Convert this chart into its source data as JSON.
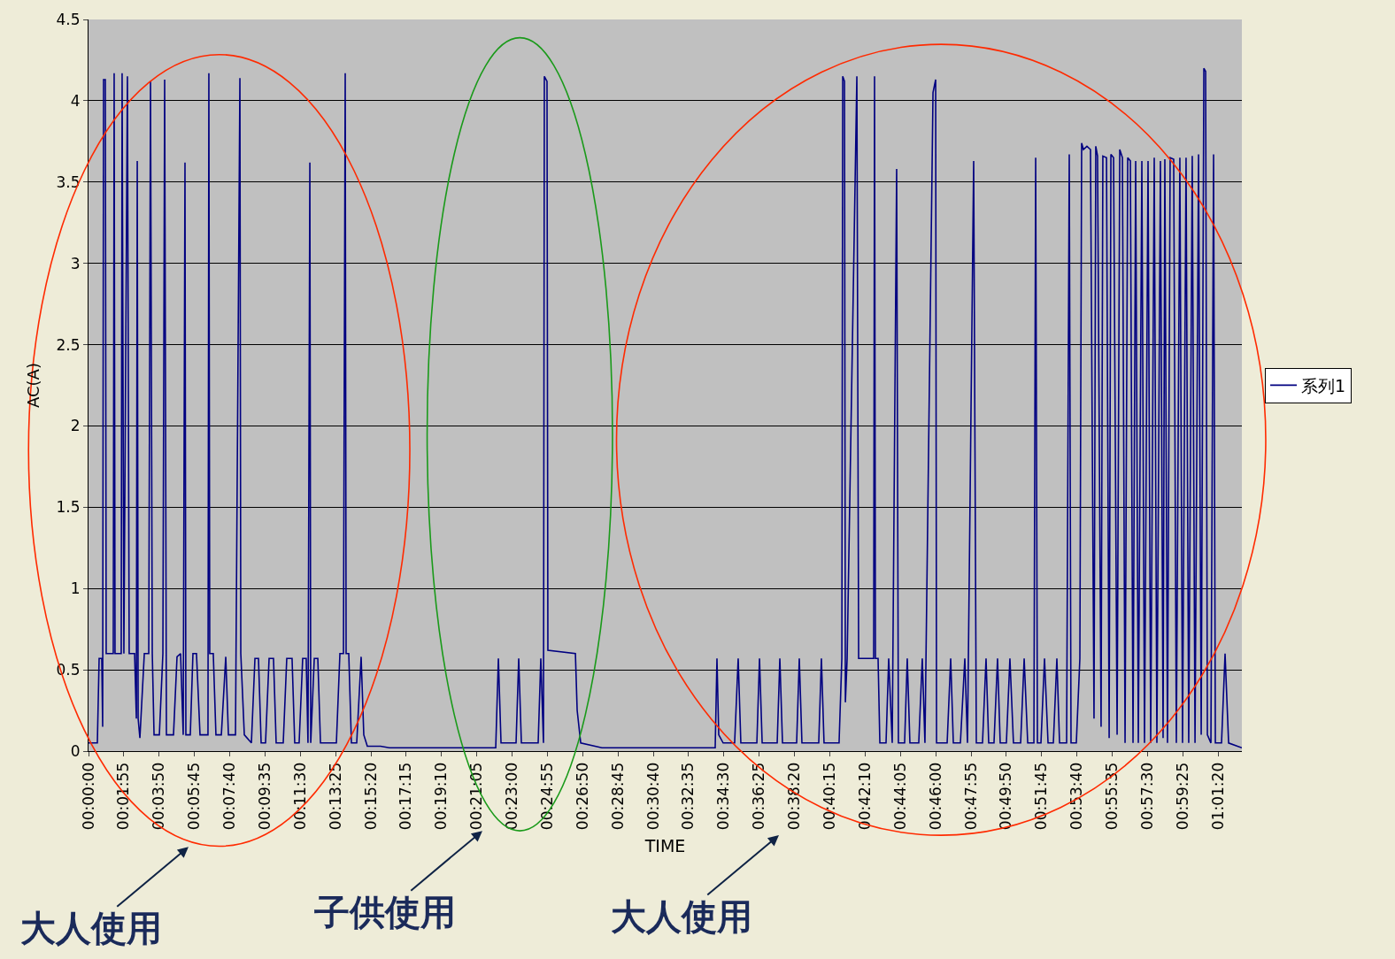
{
  "chart_data": {
    "type": "line",
    "xlabel": "TIME",
    "ylabel": "AC(A)",
    "x": [
      0,
      0.008,
      0.0096,
      0.012,
      0.0128,
      0.0136,
      0.0152,
      0.016,
      0.0224,
      0.0232,
      0.024,
      0.0296,
      0.0304,
      0.032,
      0.0352,
      0.0368,
      0.0417,
      0.0433,
      0.0441,
      0.0449,
      0.0465,
      0.0505,
      0.0545,
      0.0561,
      0.0577,
      0.0593,
      0.0641,
      0.0673,
      0.0689,
      0.0705,
      0.0769,
      0.0801,
      0.0833,
      0.0857,
      0.0873,
      0.0881,
      0.0921,
      0.0945,
      0.0977,
      0.1009,
      0.1081,
      0.1089,
      0.1097,
      0.1129,
      0.1153,
      0.1202,
      0.1242,
      0.1266,
      0.133,
      0.137,
      0.1378,
      0.141,
      0.1474,
      0.1506,
      0.1538,
      0.1562,
      0.1602,
      0.1634,
      0.1674,
      0.1698,
      0.1762,
      0.1794,
      0.1842,
      0.1866,
      0.1906,
      0.1938,
      0.197,
      0.1986,
      0.2003,
      0.2011,
      0.2043,
      0.2075,
      0.2099,
      0.2243,
      0.2275,
      0.2307,
      0.2323,
      0.2331,
      0.2355,
      0.2379,
      0.2427,
      0.2467,
      0.2491,
      0.2523,
      0.2643,
      0.2723,
      0.3685,
      0.3709,
      0.3733,
      0.3869,
      0.3893,
      0.3917,
      0.4069,
      0.4093,
      0.4117,
      0.4125,
      0.4149,
      0.4157,
      0.4406,
      0.4422,
      0.4454,
      0.4646,
      0.5671,
      0.5687,
      0.5703,
      0.5743,
      0.5847,
      0.5879,
      0.5903,
      0.6048,
      0.6072,
      0.6096,
      0.6232,
      0.6256,
      0.628,
      0.6408,
      0.6432,
      0.6456,
      0.6608,
      0.6632,
      0.6656,
      0.6792,
      0.6817,
      0.6825,
      0.6841,
      0.6849,
      0.6865,
      0.6953,
      0.6969,
      0.7105,
      0.7113,
      0.7121,
      0.7145,
      0.7161,
      0.7217,
      0.7241,
      0.7273,
      0.7313,
      0.7329,
      0.7385,
      0.7409,
      0.7433,
      0.7513,
      0.7545,
      0.7569,
      0.7642,
      0.7666,
      0.7674,
      0.777,
      0.7802,
      0.7826,
      0.789,
      0.793,
      0.7954,
      0.801,
      0.8034,
      0.809,
      0.8122,
      0.8146,
      0.8194,
      0.8226,
      0.825,
      0.8306,
      0.8338,
      0.837,
      0.8435,
      0.8467,
      0.8499,
      0.8555,
      0.8571,
      0.8587,
      0.8619,
      0.8651,
      0.8683,
      0.8731,
      0.8763,
      0.8787,
      0.8851,
      0.8875,
      0.8891,
      0.8939,
      0.8971,
      0.8987,
      0.9003,
      0.9035,
      0.9067,
      0.9099,
      0.9115,
      0.9131,
      0.9163,
      0.9179,
      0.9212,
      0.9236,
      0.9252,
      0.9276,
      0.9308,
      0.9332,
      0.9356,
      0.938,
      0.9404,
      0.9428,
      0.9452,
      0.9476,
      0.95,
      0.9532,
      0.9556,
      0.9588,
      0.9612,
      0.9644,
      0.9668,
      0.97,
      0.9724,
      0.974,
      0.9764,
      0.9788,
      0.982,
      0.9844,
      0.9876,
      0.99,
      0.9932,
      0.9956,
      0.9988,
      1.0013,
      1.0045,
      1.0069,
      1.0093,
      1.0109,
      1.0125,
      1.0157,
      1.0181,
      1.0197,
      1.0253,
      1.0285,
      1.0317,
      1.0437
    ],
    "series": [
      {
        "name": "系列1",
        "color": "#000080",
        "values": [
          0.05,
          0.05,
          0.57,
          0.57,
          0.15,
          4.13,
          4.13,
          0.6,
          0.6,
          4.17,
          0.6,
          0.6,
          4.17,
          0.6,
          4.15,
          0.6,
          0.6,
          0.2,
          3.63,
          0.2,
          0.08,
          0.6,
          0.6,
          4.12,
          0.6,
          0.1,
          0.1,
          0.6,
          4.13,
          0.1,
          0.1,
          0.58,
          0.6,
          0.1,
          3.62,
          0.1,
          0.1,
          0.6,
          0.6,
          0.1,
          0.1,
          4.17,
          0.6,
          0.6,
          0.1,
          0.1,
          0.58,
          0.1,
          0.1,
          4.14,
          0.6,
          0.1,
          0.05,
          0.57,
          0.57,
          0.05,
          0.05,
          0.57,
          0.57,
          0.05,
          0.05,
          0.57,
          0.57,
          0.05,
          0.05,
          0.57,
          0.57,
          0.05,
          3.62,
          0.05,
          0.57,
          0.57,
          0.05,
          0.05,
          0.6,
          0.6,
          4.17,
          0.6,
          0.6,
          0.05,
          0.05,
          0.58,
          0.1,
          0.03,
          0.03,
          0.02,
          0.02,
          0.57,
          0.05,
          0.05,
          0.57,
          0.05,
          0.05,
          0.57,
          0.05,
          4.15,
          4.12,
          0.62,
          0.6,
          0.25,
          0.05,
          0.02,
          0.02,
          0.57,
          0.1,
          0.05,
          0.05,
          0.57,
          0.05,
          0.05,
          0.57,
          0.05,
          0.05,
          0.57,
          0.05,
          0.05,
          0.57,
          0.05,
          0.05,
          0.57,
          0.05,
          0.05,
          0.57,
          4.15,
          4.12,
          0.3,
          0.57,
          4.15,
          0.57,
          0.57,
          4.15,
          0.57,
          0.57,
          0.05,
          0.05,
          0.57,
          0.05,
          3.58,
          0.05,
          0.05,
          0.57,
          0.05,
          0.05,
          0.57,
          0.05,
          4.05,
          4.13,
          0.05,
          0.05,
          0.57,
          0.05,
          0.05,
          0.57,
          0.05,
          3.63,
          0.05,
          0.05,
          0.57,
          0.05,
          0.05,
          0.57,
          0.05,
          0.05,
          0.57,
          0.05,
          0.05,
          0.57,
          0.05,
          0.05,
          3.65,
          0.05,
          0.05,
          0.57,
          0.05,
          0.05,
          0.57,
          0.05,
          0.05,
          3.67,
          0.05,
          0.05,
          0.57,
          3.74,
          3.7,
          3.72,
          3.7,
          0.2,
          3.72,
          3.66,
          0.15,
          3.66,
          3.65,
          0.08,
          3.67,
          3.65,
          0.1,
          3.7,
          3.65,
          0.05,
          3.65,
          3.63,
          0.05,
          3.63,
          0.05,
          3.63,
          0.05,
          3.63,
          0.05,
          3.65,
          0.05,
          3.63,
          0.08,
          3.64,
          0.05,
          3.65,
          3.64,
          0.05,
          3.65,
          0.05,
          3.65,
          0.05,
          3.66,
          0.05,
          3.67,
          0.1,
          4.2,
          4.18,
          0.1,
          0.05,
          3.67,
          0.05,
          0.05,
          0.6,
          0.05,
          0.02
        ]
      }
    ],
    "xlim": [
      0,
      1.0437
    ],
    "xticks": [
      {
        "value": 0,
        "label": "00:00:00"
      },
      {
        "value": 0.031944,
        "label": "00:01:55"
      },
      {
        "value": 0.063889,
        "label": "00:03:50"
      },
      {
        "value": 0.095833,
        "label": "00:05:45"
      },
      {
        "value": 0.127778,
        "label": "00:07:40"
      },
      {
        "value": 0.159722,
        "label": "00:09:35"
      },
      {
        "value": 0.191667,
        "label": "00:11:30"
      },
      {
        "value": 0.223611,
        "label": "00:13:25"
      },
      {
        "value": 0.255556,
        "label": "00:15:20"
      },
      {
        "value": 0.2875,
        "label": "00:17:15"
      },
      {
        "value": 0.319444,
        "label": "00:19:10"
      },
      {
        "value": 0.351389,
        "label": "00:21:05"
      },
      {
        "value": 0.383333,
        "label": "00:23:00"
      },
      {
        "value": 0.415278,
        "label": "00:24:55"
      },
      {
        "value": 0.447222,
        "label": "00:26:50"
      },
      {
        "value": 0.479167,
        "label": "00:28:45"
      },
      {
        "value": 0.511111,
        "label": "00:30:40"
      },
      {
        "value": 0.543056,
        "label": "00:32:35"
      },
      {
        "value": 0.575,
        "label": "00:34:30"
      },
      {
        "value": 0.606944,
        "label": "00:36:25"
      },
      {
        "value": 0.638889,
        "label": "00:38:20"
      },
      {
        "value": 0.670833,
        "label": "00:40:15"
      },
      {
        "value": 0.702778,
        "label": "00:42:10"
      },
      {
        "value": 0.734722,
        "label": "00:44:05"
      },
      {
        "value": 0.766667,
        "label": "00:46:00"
      },
      {
        "value": 0.798611,
        "label": "00:47:55"
      },
      {
        "value": 0.830556,
        "label": "00:49:50"
      },
      {
        "value": 0.8625,
        "label": "00:51:45"
      },
      {
        "value": 0.894444,
        "label": "00:53:40"
      },
      {
        "value": 0.926389,
        "label": "00:55:35"
      },
      {
        "value": 0.958333,
        "label": "00:57:30"
      },
      {
        "value": 0.990278,
        "label": "00:59:25"
      },
      {
        "value": 1.022222,
        "label": "01:01:20"
      }
    ],
    "ylim": [
      0,
      4.5
    ],
    "yticks": [
      0,
      0.5,
      1,
      1.5,
      2,
      2.5,
      3,
      3.5,
      4,
      4.5
    ],
    "grid": "y",
    "legend": "right",
    "marker": "none",
    "line_style": "solid",
    "annotations": [
      "大人使用",
      "子供使用",
      "大人使用"
    ]
  }
}
